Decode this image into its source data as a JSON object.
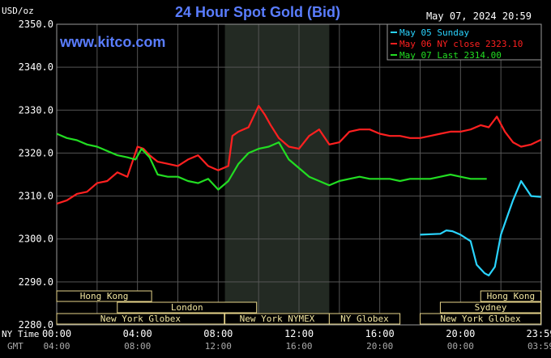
{
  "chart_data": {
    "type": "line",
    "title": "24 Hour Spot Gold (Bid)",
    "ylabel": "USD/oz",
    "date_label": "May 07, 2024 20:59",
    "watermark": "www.kitco.com",
    "ylim": [
      2280,
      2350
    ],
    "yticks": [
      "2280.0",
      "2290.0",
      "2300.0",
      "2310.0",
      "2320.0",
      "2330.0",
      "2340.0",
      "2350.0"
    ],
    "x_hours": [
      0,
      24
    ],
    "xticks_ny": [
      "00:00",
      "04:00",
      "08:00",
      "12:00",
      "16:00",
      "20:00",
      "23:59"
    ],
    "xticks_gmt": [
      "04:00",
      "08:00",
      "12:00",
      "16:00",
      "20:00",
      "00:00",
      "03:59"
    ],
    "ny_time_label": "NY Time",
    "gmt_label": "GMT",
    "grid": true,
    "legend_position": "top-right",
    "shaded_hours": [
      8.33,
      13.5
    ],
    "series": [
      {
        "name": "May 05 Sunday",
        "color": "#2ad4ff",
        "x": [
          18.0,
          19.0,
          19.3,
          19.6,
          20.0,
          20.5,
          20.8,
          21.2,
          21.4,
          21.7,
          22.0,
          22.3,
          22.6,
          23.0,
          23.5,
          23.98
        ],
        "y": [
          2301.0,
          2301.2,
          2302.0,
          2301.8,
          2301.0,
          2299.5,
          2294.0,
          2292.0,
          2291.5,
          2293.5,
          2301.0,
          2305.0,
          2309.0,
          2313.5,
          2310.0,
          2309.8
        ]
      },
      {
        "name": "May 06 NY close 2323.10",
        "color": "#ff2020",
        "x": [
          0.0,
          0.5,
          1.0,
          1.5,
          2.0,
          2.5,
          3.0,
          3.5,
          4.0,
          4.3,
          4.6,
          5.0,
          5.5,
          6.0,
          6.5,
          7.0,
          7.5,
          8.0,
          8.5,
          8.7,
          9.0,
          9.5,
          10.0,
          10.3,
          10.6,
          11.0,
          11.5,
          12.0,
          12.5,
          13.0,
          13.5,
          14.0,
          14.5,
          15.0,
          15.5,
          16.0,
          16.5,
          17.0,
          17.5,
          18.0,
          18.5,
          19.0,
          19.5,
          20.0,
          20.5,
          21.0,
          21.4,
          21.8,
          22.2,
          22.6,
          23.0,
          23.5,
          23.98
        ],
        "y": [
          2308.2,
          2309.0,
          2310.5,
          2311.0,
          2313.0,
          2313.5,
          2315.5,
          2314.5,
          2321.5,
          2321.0,
          2319.5,
          2318.0,
          2317.5,
          2317.0,
          2318.5,
          2319.5,
          2317.0,
          2316.0,
          2317.0,
          2324.0,
          2325.0,
          2326.0,
          2331.0,
          2329.0,
          2326.5,
          2323.5,
          2321.5,
          2321.0,
          2324.0,
          2325.5,
          2322.0,
          2322.5,
          2325.0,
          2325.5,
          2325.5,
          2324.5,
          2324.0,
          2324.0,
          2323.5,
          2323.5,
          2324.0,
          2324.5,
          2325.0,
          2325.0,
          2325.5,
          2326.5,
          2326.0,
          2328.5,
          2325.0,
          2322.5,
          2321.5,
          2322.0,
          2323.1
        ]
      },
      {
        "name": "May 07 Last 2314.00",
        "color": "#22dd22",
        "x": [
          0.0,
          0.5,
          1.0,
          1.5,
          2.0,
          2.5,
          3.0,
          3.5,
          3.9,
          4.2,
          4.6,
          5.0,
          5.5,
          6.0,
          6.5,
          7.0,
          7.5,
          8.0,
          8.5,
          9.0,
          9.5,
          10.0,
          10.5,
          11.0,
          11.5,
          12.0,
          12.5,
          13.0,
          13.5,
          14.0,
          14.5,
          15.0,
          15.5,
          16.0,
          16.5,
          17.0,
          17.5,
          18.0,
          18.5,
          19.0,
          19.5,
          20.0,
          20.5,
          21.0,
          21.3
        ],
        "y": [
          2324.5,
          2323.5,
          2323.0,
          2322.0,
          2321.5,
          2320.5,
          2319.5,
          2319.0,
          2318.5,
          2321.0,
          2319.0,
          2315.0,
          2314.5,
          2314.5,
          2313.5,
          2313.0,
          2314.0,
          2311.5,
          2313.5,
          2317.5,
          2320.0,
          2321.0,
          2321.5,
          2322.5,
          2318.5,
          2316.5,
          2314.5,
          2313.5,
          2312.5,
          2313.5,
          2314.0,
          2314.5,
          2314.0,
          2314.0,
          2314.0,
          2313.5,
          2314.0,
          2314.0,
          2314.0,
          2314.5,
          2315.0,
          2314.5,
          2314.0,
          2314.0,
          2314.0
        ]
      }
    ],
    "sessions": [
      {
        "label": "Hong Kong",
        "row": 0,
        "start_h": 0.0,
        "end_h": 4.7
      },
      {
        "label": "London",
        "row": 1,
        "start_h": 3.0,
        "end_h": 9.9
      },
      {
        "label": "New York Globex",
        "row": 2,
        "start_h": 0.0,
        "end_h": 8.3
      },
      {
        "label": "New York NYMEX",
        "row": 2,
        "start_h": 8.33,
        "end_h": 13.5
      },
      {
        "label": "NY Globex",
        "row": 2,
        "start_h": 13.5,
        "end_h": 17.0
      },
      {
        "label": "New York Globex",
        "row": 2,
        "start_h": 18.0,
        "end_h": 23.98
      },
      {
        "label": "Hong Kong",
        "row": 0,
        "start_h": 21.0,
        "end_h": 23.98
      },
      {
        "label": "Sydney",
        "row": 1,
        "start_h": 19.0,
        "end_h": 23.98
      }
    ]
  }
}
